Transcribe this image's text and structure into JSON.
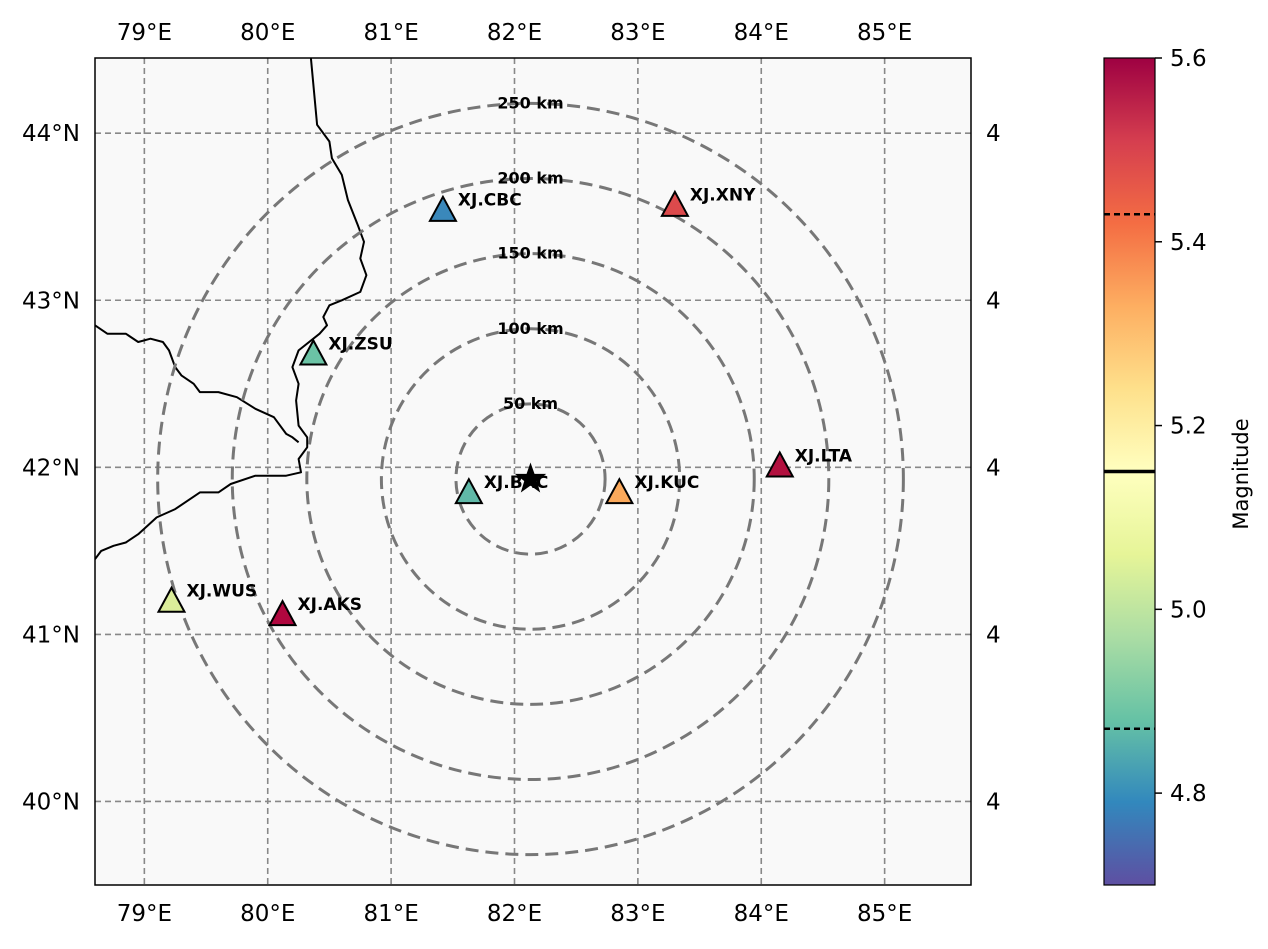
{
  "map": {
    "lon_range": [
      78.6,
      85.7
    ],
    "lat_range": [
      39.5,
      44.45
    ],
    "lon_ticks": [
      79,
      80,
      81,
      82,
      83,
      84,
      85
    ],
    "lat_ticks": [
      40,
      41,
      42,
      43,
      44
    ],
    "lon_tick_labels": [
      "79°E",
      "80°E",
      "81°E",
      "82°E",
      "83°E",
      "84°E",
      "85°E"
    ],
    "lat_tick_labels": [
      "40°N",
      "41°N",
      "42°N",
      "43°N",
      "44°N"
    ],
    "gridlines": true,
    "background_color": "#f9f9f9",
    "epicenter": {
      "lon": 82.13,
      "lat": 41.93,
      "symbol": "star"
    },
    "rings": [
      {
        "radius_km": 50,
        "label": "50 km"
      },
      {
        "radius_km": 100,
        "label": "100 km"
      },
      {
        "radius_km": 150,
        "label": "150 km"
      },
      {
        "radius_km": 200,
        "label": "200 km"
      },
      {
        "radius_km": 250,
        "label": "250 km"
      }
    ],
    "stations": [
      {
        "name": "XJ.CBC",
        "lon": 81.42,
        "lat": 43.53,
        "color": "#3a88bb"
      },
      {
        "name": "XJ.XNY",
        "lon": 83.3,
        "lat": 43.56,
        "color": "#dc4a4c"
      },
      {
        "name": "XJ.ZSU",
        "lon": 80.37,
        "lat": 42.67,
        "color": "#6bc3a5"
      },
      {
        "name": "XJ.BAC",
        "lon": 81.63,
        "lat": 41.84,
        "color": "#60b9a8"
      },
      {
        "name": "XJ.KUC",
        "lon": 82.85,
        "lat": 41.84,
        "color": "#fba95b"
      },
      {
        "name": "XJ.LTA",
        "lon": 84.15,
        "lat": 42.0,
        "color": "#b2103f"
      },
      {
        "name": "XJ.WUS",
        "lon": 79.22,
        "lat": 41.19,
        "color": "#dbed9a"
      },
      {
        "name": "XJ.AKS",
        "lon": 80.12,
        "lat": 41.11,
        "color": "#b0073f"
      }
    ],
    "border": [
      [
        80.35,
        44.45
      ],
      [
        80.4,
        44.05
      ],
      [
        80.5,
        43.95
      ],
      [
        80.52,
        43.85
      ],
      [
        80.6,
        43.75
      ],
      [
        80.65,
        43.6
      ],
      [
        80.73,
        43.45
      ],
      [
        80.78,
        43.35
      ],
      [
        80.75,
        43.25
      ],
      [
        80.8,
        43.15
      ],
      [
        80.75,
        43.05
      ],
      [
        80.6,
        43.0
      ],
      [
        80.5,
        42.97
      ],
      [
        80.45,
        42.9
      ],
      [
        80.48,
        42.85
      ],
      [
        80.42,
        42.8
      ],
      [
        80.25,
        42.7
      ],
      [
        80.2,
        42.6
      ],
      [
        80.25,
        42.5
      ],
      [
        80.23,
        42.4
      ],
      [
        80.25,
        42.25
      ],
      [
        80.32,
        42.18
      ],
      [
        80.32,
        42.12
      ],
      [
        80.25,
        42.05
      ],
      [
        80.27,
        41.97
      ],
      [
        80.15,
        41.95
      ],
      [
        79.9,
        41.95
      ],
      [
        79.7,
        41.9
      ],
      [
        79.6,
        41.85
      ],
      [
        79.45,
        41.85
      ],
      [
        79.25,
        41.75
      ],
      [
        79.1,
        41.7
      ],
      [
        78.95,
        41.6
      ],
      [
        78.85,
        41.55
      ],
      [
        78.75,
        41.53
      ],
      [
        78.65,
        41.5
      ],
      [
        78.6,
        41.45
      ]
    ],
    "border2": [
      [
        78.6,
        42.85
      ],
      [
        78.7,
        42.8
      ],
      [
        78.85,
        42.8
      ],
      [
        78.95,
        42.75
      ],
      [
        79.05,
        42.77
      ],
      [
        79.15,
        42.75
      ],
      [
        79.2,
        42.7
      ],
      [
        79.25,
        42.6
      ],
      [
        79.3,
        42.55
      ],
      [
        79.4,
        42.5
      ],
      [
        79.45,
        42.45
      ],
      [
        79.6,
        42.45
      ],
      [
        79.75,
        42.42
      ],
      [
        79.9,
        42.35
      ],
      [
        80.05,
        42.3
      ],
      [
        80.15,
        42.2
      ],
      [
        80.2,
        42.18
      ],
      [
        80.25,
        42.15
      ]
    ]
  },
  "colorbar": {
    "label": "Magnitude",
    "min": 4.7,
    "max": 5.6,
    "ticks": [
      4.8,
      5.0,
      5.2,
      5.4,
      5.6
    ],
    "tick_labels": [
      "4.8",
      "5.0",
      "5.2",
      "5.4",
      "5.6"
    ],
    "colormap": "Spectral_r",
    "solid_line": 5.15,
    "dashed_lines": [
      4.87,
      5.43
    ]
  }
}
